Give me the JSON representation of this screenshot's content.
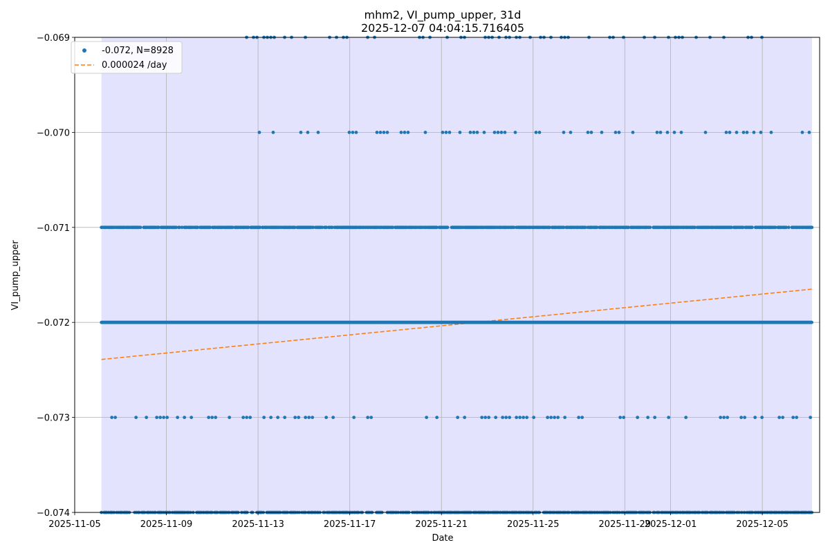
{
  "chart_data": {
    "type": "scatter",
    "title_lines": [
      "mhm2, VI_pump_upper, 31d",
      "2025-12-07 04:04:15.716405"
    ],
    "xlabel": "Date",
    "ylabel": "VI_pump_upper",
    "x_is_date": true,
    "xlim": [
      "2025-11-05T00:00:00",
      "2025-12-07T12:00:00"
    ],
    "ylim": [
      -0.074,
      -0.069
    ],
    "x_ticks": [
      "2025-11-05",
      "2025-11-09",
      "2025-11-13",
      "2025-11-17",
      "2025-11-21",
      "2025-11-25",
      "2025-11-29",
      "2025-12-01",
      "2025-12-05"
    ],
    "y_ticks": [
      -0.074,
      -0.073,
      -0.072,
      -0.071,
      -0.07,
      -0.069
    ],
    "y_tick_labels": [
      "−0.074",
      "−0.073",
      "−0.072",
      "−0.071",
      "−0.070",
      "−0.069"
    ],
    "grid": true,
    "shaded_span": {
      "start": "2025-11-06T04:00:00",
      "end": "2025-12-07T04:00:00",
      "color": "#e3e3fd"
    },
    "legend_position": "upper left",
    "series": [
      {
        "name": "-0.072, N=8928",
        "kind": "scatter",
        "color": "#1f77b4",
        "count": 8928,
        "levels": [
          {
            "y": -0.072,
            "coverage": "continuous",
            "from": "2025-11-06T04:00:00",
            "to": "2025-12-07T04:00:00"
          },
          {
            "y": -0.071,
            "coverage": "near-continuous",
            "from": "2025-11-06T04:00:00",
            "to": "2025-12-07T04:00:00"
          },
          {
            "y": -0.073,
            "coverage": "sparse",
            "from": "2025-11-06T04:00:00",
            "to": "2025-12-07T04:00:00"
          },
          {
            "y": -0.07,
            "coverage": "sparse",
            "from": "2025-11-12T00:00:00",
            "to": "2025-12-07T04:00:00"
          },
          {
            "y": -0.069,
            "coverage": "sparse",
            "from": "2025-11-12T12:00:00",
            "to": "2025-12-05T00:00:00"
          },
          {
            "y": -0.074,
            "coverage": "dense",
            "from": "2025-11-06T04:00:00",
            "to": "2025-12-07T04:00:00"
          }
        ]
      },
      {
        "name": "0.000024 /day",
        "kind": "line",
        "style": "dashed",
        "color": "#ff7f0e",
        "x": [
          "2025-11-06T04:00:00",
          "2025-12-07T04:00:00"
        ],
        "y": [
          -0.07239,
          -0.07165
        ]
      }
    ]
  }
}
